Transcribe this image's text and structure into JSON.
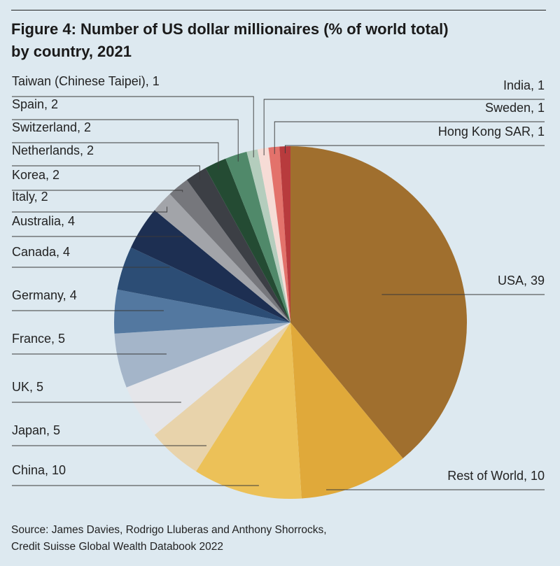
{
  "title_line1": "Figure 4: Number of US dollar millionaires (% of world total)",
  "title_line2": "by country, 2021",
  "source_line1": "Source: James Davies, Rodrigo Lluberas and Anthony Shorrocks,",
  "source_line2": "Credit Suisse Global Wealth Databook 2022",
  "chart_data": {
    "type": "pie",
    "title": "Figure 4: Number of US dollar millionaires (% of world total) by country, 2021",
    "unit": "% of world total",
    "slices": [
      {
        "label": "USA, 39",
        "name": "USA",
        "value": 39,
        "color": "#a06f2e",
        "side": "right"
      },
      {
        "label": "Rest of World, 10",
        "name": "Rest of World",
        "value": 10,
        "color": "#e0a93a",
        "side": "right"
      },
      {
        "label": "China, 10",
        "name": "China",
        "value": 10,
        "color": "#ecc158",
        "side": "left"
      },
      {
        "label": "Japan, 5",
        "name": "Japan",
        "value": 5,
        "color": "#e8d3ab",
        "side": "left"
      },
      {
        "label": "UK, 5",
        "name": "UK",
        "value": 5,
        "color": "#e5e6ea",
        "side": "left"
      },
      {
        "label": "France, 5",
        "name": "France",
        "value": 5,
        "color": "#a4b5c9",
        "side": "left"
      },
      {
        "label": "Germany, 4",
        "name": "Germany",
        "value": 4,
        "color": "#5378a0",
        "side": "left"
      },
      {
        "label": "Canada, 4",
        "name": "Canada",
        "value": 4,
        "color": "#2c4d75",
        "side": "left"
      },
      {
        "label": "Australia, 4",
        "name": "Australia",
        "value": 4,
        "color": "#1d2f52",
        "side": "left"
      },
      {
        "label": "Italy, 2",
        "name": "Italy",
        "value": 2,
        "color": "#a2a4a9",
        "side": "left"
      },
      {
        "label": "Korea, 2",
        "name": "Korea",
        "value": 2,
        "color": "#76777c",
        "side": "left"
      },
      {
        "label": "Netherlands, 2",
        "name": "Netherlands",
        "value": 2,
        "color": "#3c3f45",
        "side": "left"
      },
      {
        "label": "Switzerland, 2",
        "name": "Switzerland",
        "value": 2,
        "color": "#244b33",
        "side": "left"
      },
      {
        "label": "Spain, 2",
        "name": "Spain",
        "value": 2,
        "color": "#50896a",
        "side": "left"
      },
      {
        "label": "Taiwan (Chinese Taipei), 1",
        "name": "Taiwan (Chinese Taipei)",
        "value": 1,
        "color": "#b4cdbd",
        "side": "left"
      },
      {
        "label": "India, 1",
        "name": "India",
        "value": 1,
        "color": "#f6dcd6",
        "side": "right"
      },
      {
        "label": "Sweden, 1",
        "name": "Sweden",
        "value": 1,
        "color": "#e3726b",
        "side": "right"
      },
      {
        "label": "Hong Kong SAR, 1",
        "name": "Hong Kong SAR",
        "value": 1,
        "color": "#b83b3d",
        "side": "right"
      }
    ],
    "legend": "none",
    "grid": false
  }
}
